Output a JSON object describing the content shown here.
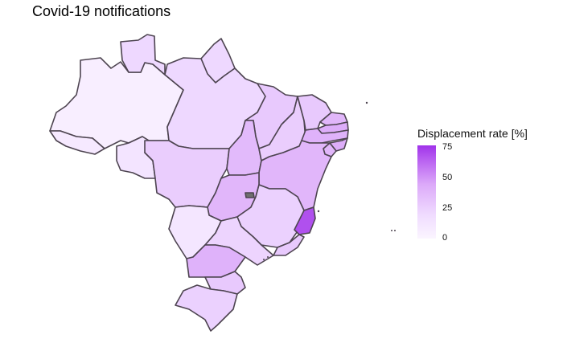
{
  "title": "Covid-19 notifications",
  "legend": {
    "title": "Displacement rate [%]",
    "ticks": [
      "75",
      "50",
      "25",
      "0"
    ],
    "gradient": [
      "#fbf5ff",
      "#f0dcff",
      "#dcaaf9",
      "#b65cf0",
      "#a033ea"
    ]
  },
  "map": {
    "region": "Brazil",
    "border_color": "#4d4450",
    "missing_color": "#6f6f6f",
    "states": [
      {
        "name": "AM",
        "rate": 6
      },
      {
        "name": "AC",
        "rate": 10
      },
      {
        "name": "RR",
        "rate": 22
      },
      {
        "name": "AP",
        "rate": 22
      },
      {
        "name": "PA",
        "rate": 22
      },
      {
        "name": "RO",
        "rate": 14
      },
      {
        "name": "MT",
        "rate": 28
      },
      {
        "name": "MA",
        "rate": 30
      },
      {
        "name": "TO",
        "rate": 38
      },
      {
        "name": "PI",
        "rate": 28
      },
      {
        "name": "CE",
        "rate": 30
      },
      {
        "name": "RN",
        "rate": 40
      },
      {
        "name": "PB",
        "rate": 45
      },
      {
        "name": "PE",
        "rate": 42
      },
      {
        "name": "AL",
        "rate": 45
      },
      {
        "name": "SE",
        "rate": 40
      },
      {
        "name": "BA",
        "rate": 40
      },
      {
        "name": "GO",
        "rate": 40
      },
      {
        "name": "DF",
        "rate": null
      },
      {
        "name": "MG",
        "rate": 26
      },
      {
        "name": "ES",
        "rate": 72
      },
      {
        "name": "RJ",
        "rate": 30
      },
      {
        "name": "MS",
        "rate": 12
      },
      {
        "name": "SP",
        "rate": 24
      },
      {
        "name": "PR",
        "rate": 42
      },
      {
        "name": "SC",
        "rate": 30
      },
      {
        "name": "RS",
        "rate": 26
      }
    ]
  }
}
